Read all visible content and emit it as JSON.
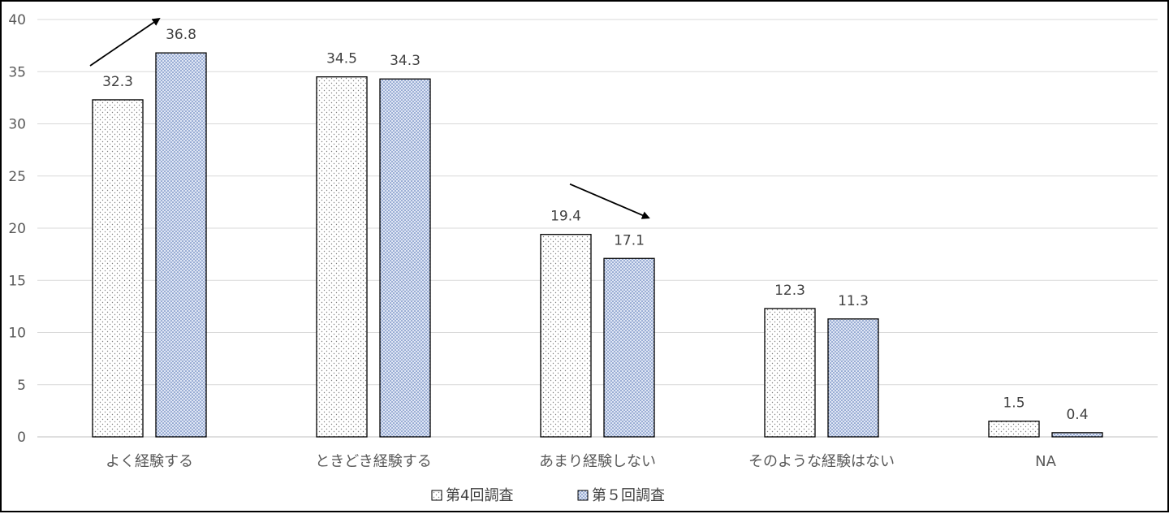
{
  "chart_data": {
    "type": "bar",
    "title": "",
    "xlabel": "",
    "ylabel": "",
    "ylim": [
      0,
      40
    ],
    "yticks": [
      0,
      5,
      10,
      15,
      20,
      25,
      30,
      35,
      40
    ],
    "grid": true,
    "legend_position": "bottom",
    "categories": [
      "よく経験する",
      "ときどき経験する",
      "あまり経験しない",
      "そのような経験はない",
      "NA"
    ],
    "series": [
      {
        "name": "第4回調査",
        "values": [
          32.3,
          34.5,
          19.4,
          12.3,
          1.5
        ],
        "pattern": "dots-white",
        "color": "#ffffff"
      },
      {
        "name": "第５回調査",
        "values": [
          36.8,
          34.3,
          17.1,
          11.3,
          0.4
        ],
        "pattern": "dots-blue",
        "color": "#c9d6ee"
      }
    ],
    "annotations": [
      {
        "type": "arrow",
        "direction": "up",
        "category": "よく経験する"
      },
      {
        "type": "arrow",
        "direction": "down",
        "category": "あまり経験しない"
      }
    ]
  }
}
